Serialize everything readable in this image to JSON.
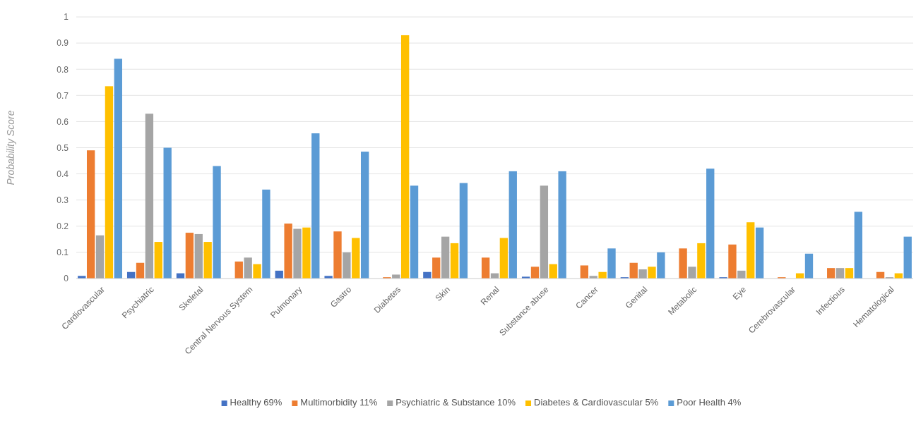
{
  "chart_data": {
    "type": "bar",
    "ylabel": "Probability Score",
    "categories": [
      "Cardiovascular",
      "Psychiatric",
      "Skeletal",
      "Central Nervous System",
      "Pulmonary",
      "Gastro",
      "Diabetes",
      "Skin",
      "Renal",
      "Substance abuse",
      "Cancer",
      "Genital",
      "Metabolic",
      "Eye",
      "Cerebrovascular",
      "Infectious",
      "Hematological"
    ],
    "series": [
      {
        "name": "Healthy 69%",
        "color": "#4472c4",
        "values": [
          0.01,
          0.025,
          0.02,
          0,
          0.03,
          0.01,
          null,
          0.025,
          0,
          0.007,
          null,
          0.005,
          null,
          0.005,
          0,
          null,
          0
        ]
      },
      {
        "name": "Multimorbidity 11%",
        "color": "#ed7d31",
        "values": [
          0.49,
          0.06,
          0.175,
          0.065,
          0.21,
          0.18,
          0.005,
          0.08,
          0.08,
          0.045,
          0.05,
          0.06,
          0.115,
          0.13,
          0.005,
          0.04,
          0.025
        ]
      },
      {
        "name": "Psychiatric & Substance 10%",
        "color": "#a5a5a5",
        "values": [
          0.165,
          0.63,
          0.17,
          0.08,
          0.19,
          0.1,
          0.015,
          0.16,
          0.02,
          0.355,
          0.01,
          0.035,
          0.045,
          0.03,
          0,
          0.04,
          0.005
        ]
      },
      {
        "name": "Diabetes & Cardiovascular 5%",
        "color": "#ffc000",
        "values": [
          0.735,
          0.14,
          0.14,
          0.055,
          0.195,
          0.155,
          0.93,
          0.135,
          0.155,
          0.055,
          0.025,
          0.045,
          0.135,
          0.215,
          0.02,
          0.04,
          0.02
        ]
      },
      {
        "name": "Poor Health 4%",
        "color": "#5b9bd5",
        "values": [
          0.84,
          0.5,
          0.43,
          0.34,
          0.555,
          0.485,
          0.355,
          0.365,
          0.41,
          0.41,
          0.115,
          0.1,
          0.42,
          0.195,
          0.095,
          0.255,
          0.16
        ]
      }
    ],
    "ylim": [
      0,
      1
    ],
    "yticks": [
      0,
      0.1,
      0.2,
      0.3,
      0.4,
      0.5,
      0.6,
      0.7,
      0.8,
      0.9,
      1
    ],
    "grid": "y",
    "legend": "bottom"
  }
}
